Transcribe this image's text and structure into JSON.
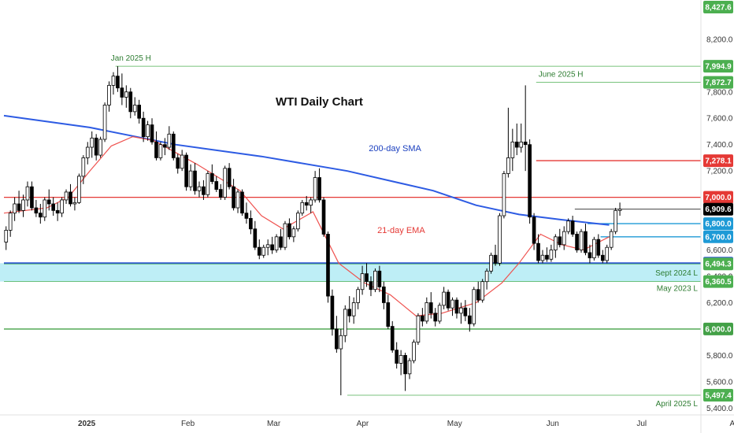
{
  "chart_data": {
    "type": "candlestick",
    "title": "WTI Daily Chart",
    "xlabel": "",
    "ylabel": "",
    "ylim": [
      5390,
      8450
    ],
    "grid": false,
    "y_ticks": [
      8200,
      8000,
      7800,
      7600,
      7400,
      7200,
      7000,
      6800,
      6600,
      6400,
      6200,
      6000,
      5800,
      5600,
      5400
    ],
    "x_ticks": [
      {
        "label": "2025",
        "x": "2025-01-01",
        "bold": true
      },
      {
        "label": "Feb",
        "x": "2025-02-03"
      },
      {
        "label": "Mar",
        "x": "2025-03-03"
      },
      {
        "label": "Apr",
        "x": "2025-04-01"
      },
      {
        "label": "May",
        "x": "2025-05-01"
      },
      {
        "label": "Jun",
        "x": "2025-06-02"
      },
      {
        "label": "Jul",
        "x": "2025-07-01"
      },
      {
        "label": "Aug",
        "x": "2025-08-01"
      }
    ],
    "x_start": "2024-12-05",
    "bars": [
      [
        6660,
        6780,
        6600,
        6750
      ],
      [
        6750,
        6900,
        6700,
        6880
      ],
      [
        6880,
        7000,
        6820,
        6950
      ],
      [
        6950,
        7050,
        6880,
        6900
      ],
      [
        6900,
        7020,
        6850,
        6980
      ],
      [
        6980,
        7120,
        6930,
        7080
      ],
      [
        7080,
        7120,
        6900,
        6920
      ],
      [
        6920,
        6980,
        6850,
        6880
      ],
      [
        6880,
        6950,
        6800,
        6850
      ],
      [
        6850,
        7000,
        6820,
        6980
      ],
      [
        6980,
        7060,
        6900,
        6950
      ],
      [
        6950,
        7000,
        6860,
        6900
      ],
      [
        6900,
        6960,
        6820,
        6880
      ],
      [
        6880,
        7000,
        6850,
        6980
      ],
      [
        6980,
        7060,
        6950,
        7040
      ],
      [
        7040,
        7100,
        6930,
        6950
      ],
      [
        6950,
        7000,
        6900,
        6960
      ],
      [
        6960,
        7180,
        6950,
        7160
      ],
      [
        7160,
        7320,
        7100,
        7300
      ],
      [
        7300,
        7420,
        7250,
        7380
      ],
      [
        7380,
        7500,
        7300,
        7450
      ],
      [
        7450,
        7480,
        7280,
        7320
      ],
      [
        7320,
        7460,
        7300,
        7440
      ],
      [
        7440,
        7720,
        7420,
        7700
      ],
      [
        7700,
        7880,
        7650,
        7850
      ],
      [
        7850,
        7950,
        7780,
        7920
      ],
      [
        7920,
        7995,
        7800,
        7830
      ],
      [
        7830,
        7940,
        7700,
        7760
      ],
      [
        7760,
        7850,
        7680,
        7800
      ],
      [
        7800,
        7830,
        7600,
        7650
      ],
      [
        7650,
        7760,
        7620,
        7700
      ],
      [
        7700,
        7740,
        7560,
        7600
      ],
      [
        7600,
        7650,
        7420,
        7460
      ],
      [
        7460,
        7580,
        7430,
        7550
      ],
      [
        7550,
        7600,
        7400,
        7420
      ],
      [
        7420,
        7500,
        7280,
        7300
      ],
      [
        7300,
        7420,
        7280,
        7400
      ],
      [
        7400,
        7450,
        7320,
        7380
      ],
      [
        7380,
        7540,
        7360,
        7480
      ],
      [
        7480,
        7500,
        7280,
        7300
      ],
      [
        7300,
        7330,
        7180,
        7220
      ],
      [
        7220,
        7360,
        7200,
        7320
      ],
      [
        7320,
        7340,
        7050,
        7080
      ],
      [
        7080,
        7250,
        7050,
        7200
      ],
      [
        7200,
        7260,
        7020,
        7050
      ],
      [
        7050,
        7120,
        7000,
        7080
      ],
      [
        7080,
        7130,
        6980,
        7020
      ],
      [
        7020,
        7200,
        7000,
        7180
      ],
      [
        7180,
        7250,
        7100,
        7120
      ],
      [
        7120,
        7160,
        7040,
        7060
      ],
      [
        7060,
        7100,
        6980,
        7000
      ],
      [
        7000,
        7240,
        6980,
        7220
      ],
      [
        7220,
        7260,
        7060,
        7080
      ],
      [
        7080,
        7140,
        6900,
        6920
      ],
      [
        6920,
        7060,
        6880,
        7040
      ],
      [
        7040,
        7060,
        6860,
        6880
      ],
      [
        6880,
        6960,
        6800,
        6840
      ],
      [
        6840,
        6900,
        6720,
        6760
      ],
      [
        6760,
        6820,
        6600,
        6620
      ],
      [
        6620,
        6680,
        6530,
        6560
      ],
      [
        6560,
        6640,
        6540,
        6620
      ],
      [
        6620,
        6680,
        6560,
        6640
      ],
      [
        6640,
        6700,
        6570,
        6600
      ],
      [
        6600,
        6720,
        6580,
        6700
      ],
      [
        6700,
        6760,
        6600,
        6620
      ],
      [
        6620,
        6820,
        6600,
        6800
      ],
      [
        6800,
        6840,
        6680,
        6700
      ],
      [
        6700,
        6780,
        6660,
        6760
      ],
      [
        6760,
        6900,
        6740,
        6880
      ],
      [
        6880,
        6980,
        6860,
        6960
      ],
      [
        6960,
        7010,
        6900,
        6940
      ],
      [
        6940,
        7000,
        6880,
        6980
      ],
      [
        6980,
        7200,
        6960,
        7150
      ],
      [
        7150,
        7220,
        6960,
        6980
      ],
      [
        6980,
        7000,
        6700,
        6720
      ],
      [
        6720,
        6740,
        6200,
        6250
      ],
      [
        6250,
        6300,
        5950,
        6000
      ],
      [
        6000,
        6100,
        5820,
        5850
      ],
      [
        5850,
        6000,
        5497,
        5950
      ],
      [
        5950,
        6180,
        5900,
        6150
      ],
      [
        6150,
        6250,
        6050,
        6100
      ],
      [
        6100,
        6240,
        6040,
        6200
      ],
      [
        6200,
        6320,
        6150,
        6300
      ],
      [
        6300,
        6480,
        6260,
        6420
      ],
      [
        6420,
        6500,
        6320,
        6360
      ],
      [
        6360,
        6400,
        6250,
        6300
      ],
      [
        6300,
        6460,
        6280,
        6440
      ],
      [
        6440,
        6480,
        6280,
        6320
      ],
      [
        6320,
        6360,
        6150,
        6200
      ],
      [
        6200,
        6260,
        6000,
        6020
      ],
      [
        6020,
        6060,
        5820,
        5840
      ],
      [
        5840,
        5900,
        5700,
        5740
      ],
      [
        5740,
        5840,
        5650,
        5800
      ],
      [
        5800,
        5820,
        5530,
        5660
      ],
      [
        5660,
        5780,
        5620,
        5760
      ],
      [
        5760,
        5920,
        5740,
        5900
      ],
      [
        5900,
        6120,
        5880,
        6100
      ],
      [
        6100,
        6160,
        6020,
        6060
      ],
      [
        6060,
        6240,
        6040,
        6200
      ],
      [
        6200,
        6280,
        6080,
        6120
      ],
      [
        6120,
        6160,
        6020,
        6060
      ],
      [
        6060,
        6200,
        6040,
        6180
      ],
      [
        6180,
        6320,
        6150,
        6280
      ],
      [
        6280,
        6300,
        6140,
        6160
      ],
      [
        6160,
        6240,
        6100,
        6220
      ],
      [
        6220,
        6240,
        6080,
        6120
      ],
      [
        6120,
        6200,
        6040,
        6160
      ],
      [
        6160,
        6220,
        6060,
        6100
      ],
      [
        6100,
        6160,
        5980,
        6040
      ],
      [
        6040,
        6320,
        6020,
        6300
      ],
      [
        6300,
        6360,
        6200,
        6220
      ],
      [
        6220,
        6380,
        6200,
        6360
      ],
      [
        6360,
        6460,
        6300,
        6440
      ],
      [
        6440,
        6580,
        6420,
        6560
      ],
      [
        6560,
        6640,
        6480,
        6500
      ],
      [
        6500,
        6880,
        6480,
        6860
      ],
      [
        6860,
        7200,
        6840,
        7180
      ],
      [
        7180,
        7680,
        7150,
        7300
      ],
      [
        7300,
        7520,
        7200,
        7420
      ],
      [
        7420,
        7560,
        7320,
        7380
      ],
      [
        7380,
        7560,
        7340,
        7420
      ],
      [
        7420,
        7850,
        7200,
        7400
      ],
      [
        7400,
        7440,
        6800,
        6850
      ],
      [
        6850,
        6880,
        6600,
        6650
      ],
      [
        6650,
        6720,
        6500,
        6520
      ],
      [
        6520,
        6600,
        6500,
        6560
      ],
      [
        6560,
        6620,
        6510,
        6530
      ],
      [
        6530,
        6640,
        6510,
        6600
      ],
      [
        6600,
        6720,
        6540,
        6700
      ],
      [
        6700,
        6760,
        6620,
        6640
      ],
      [
        6640,
        6780,
        6600,
        6740
      ],
      [
        6740,
        6840,
        6720,
        6820
      ],
      [
        6820,
        6860,
        6700,
        6720
      ],
      [
        6720,
        6740,
        6580,
        6600
      ],
      [
        6600,
        6760,
        6580,
        6740
      ],
      [
        6740,
        6800,
        6560,
        6580
      ],
      [
        6580,
        6640,
        6500,
        6540
      ],
      [
        6540,
        6700,
        6520,
        6680
      ],
      [
        6680,
        6720,
        6540,
        6560
      ],
      [
        6560,
        6600,
        6500,
        6520
      ],
      [
        6520,
        6640,
        6500,
        6620
      ],
      [
        6620,
        6760,
        6600,
        6740
      ],
      [
        6740,
        6920,
        6720,
        6900
      ],
      [
        6900,
        6960,
        6860,
        6910
      ]
    ],
    "sma200": [
      [
        0,
        7620
      ],
      [
        20,
        7530
      ],
      [
        40,
        7400
      ],
      [
        60,
        7310
      ],
      [
        80,
        7200
      ],
      [
        100,
        7050
      ],
      [
        110,
        6940
      ],
      [
        120,
        6870
      ],
      [
        130,
        6830
      ],
      [
        141,
        6790
      ]
    ],
    "ema21": [
      [
        0,
        6880
      ],
      [
        10,
        6920
      ],
      [
        15,
        7000
      ],
      [
        20,
        7200
      ],
      [
        25,
        7390
      ],
      [
        30,
        7460
      ],
      [
        35,
        7430
      ],
      [
        45,
        7250
      ],
      [
        55,
        7050
      ],
      [
        60,
        6860
      ],
      [
        65,
        6760
      ],
      [
        72,
        6890
      ],
      [
        78,
        6500
      ],
      [
        84,
        6350
      ],
      [
        90,
        6260
      ],
      [
        96,
        6100
      ],
      [
        102,
        6120
      ],
      [
        110,
        6200
      ],
      [
        116,
        6350
      ],
      [
        120,
        6500
      ],
      [
        125,
        6720
      ],
      [
        130,
        6640
      ],
      [
        135,
        6600
      ],
      [
        141,
        6700
      ]
    ],
    "levels": [
      {
        "value": 7994.9,
        "label": "7,994.9",
        "color": "#4caf50",
        "style": "thin",
        "note": "Jan 2025 H",
        "x_from": 26
      },
      {
        "value": 7872.7,
        "label": "7,872.7",
        "color": "#4caf50",
        "style": "thin",
        "note": "June 2025 H",
        "x_from": 124
      },
      {
        "value": 7278.1,
        "label": "7,278.1",
        "color": "#e53935",
        "style": "solid",
        "x_from": 124
      },
      {
        "value": 7000.0,
        "label": "7,000.0",
        "color": "#e53935",
        "style": "solid",
        "x_from": 0
      },
      {
        "value": 6909.6,
        "label": "6,909.6",
        "color": "#000000",
        "style": "thin",
        "x_from": 133
      },
      {
        "value": 6800.0,
        "label": "6,800.0",
        "color": "#1e9ad6",
        "style": "solid",
        "x_from": 136
      },
      {
        "value": 6700.0,
        "label": "6,700.0",
        "color": "#1e9ad6",
        "style": "solid",
        "x_from": 139
      },
      {
        "value": 6500.0,
        "label": "6,500.0",
        "color": "#2b55d6",
        "style": "thick",
        "x_from": 0
      },
      {
        "value": 6494.3,
        "label": "6,494.3",
        "color": "#4caf50",
        "style": "thin",
        "note": "Sept 2024 L",
        "x_from": 0
      },
      {
        "value": 6360.5,
        "label": "6,360.5",
        "color": "#4caf50",
        "style": "thin",
        "note": "May 2023 L",
        "x_from": 0
      },
      {
        "value": 6000.0,
        "label": "6,000.0",
        "color": "#43a047",
        "style": "solid",
        "x_from": 0
      },
      {
        "value": 5497.4,
        "label": "5,497.4",
        "color": "#4caf50",
        "style": "thin",
        "note": "April 2025 L",
        "x_from": 80
      }
    ],
    "top_price": {
      "value": 8427.6,
      "label": "8,427.6",
      "color": "#4caf50"
    },
    "zone": {
      "from": 6360.5,
      "to": 6500.0,
      "color": "#b3ebf4"
    },
    "annotations": [
      {
        "text": "200-day SMA",
        "color": "#1a3fbf",
        "x": 85,
        "y": 7350
      },
      {
        "text": "21-day EMA",
        "color": "#e53935",
        "x": 87,
        "y": 6730
      }
    ]
  }
}
